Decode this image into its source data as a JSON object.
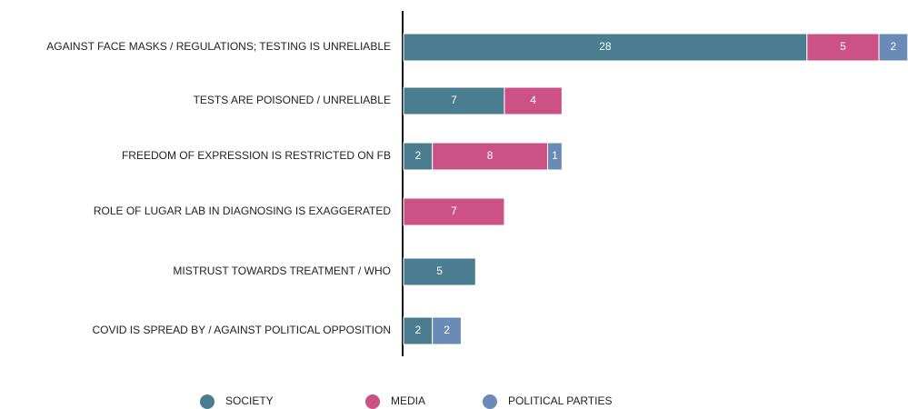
{
  "chart_data": {
    "type": "stacked-barh",
    "categories": [
      "AGAINST FACE MASKS / REGULATIONS; TESTING IS UNRELIABLE",
      "TESTS ARE POISONED / UNRELIABLE",
      "FREEDOM OF EXPRESSION IS RESTRICTED ON FB",
      "ROLE OF LUGAR LAB IN DIAGNOSING IS EXAGGERATED",
      "MISTRUST TOWARDS TREATMENT / WHO",
      "COVID IS SPREAD BY / AGAINST POLITICAL OPPOSITION"
    ],
    "series": [
      {
        "name": "SOCIETY",
        "color": "#4a7d8f",
        "values": [
          28,
          7,
          2,
          null,
          5,
          2
        ]
      },
      {
        "name": "MEDIA",
        "color": "#cc5285",
        "values": [
          5,
          4,
          8,
          7,
          null,
          null
        ]
      },
      {
        "name": "POLITICAL PARTIES",
        "color": "#6a8bb5",
        "values": [
          2,
          null,
          1,
          null,
          null,
          2
        ]
      }
    ]
  }
}
